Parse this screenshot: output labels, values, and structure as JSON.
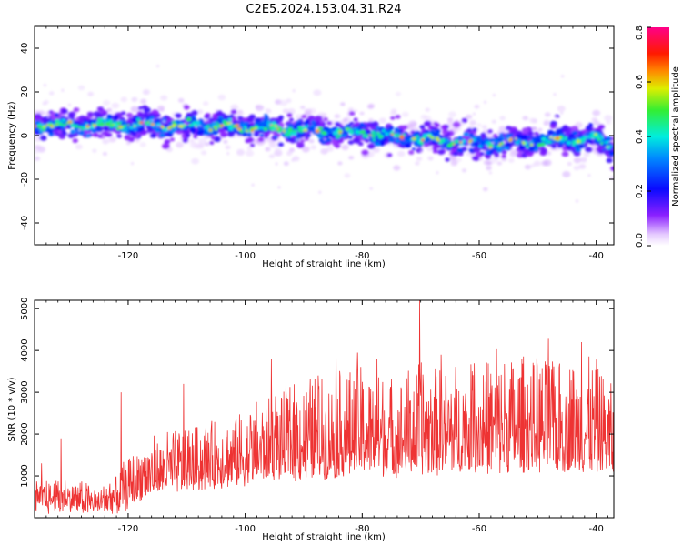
{
  "title": "C2E5.2024.153.04.31.R24",
  "colors": {
    "snr_line": "#ee3333",
    "frame": "#000000"
  },
  "chart_data": [
    {
      "type": "heatmap",
      "xlabel": "Height of straight line (km)",
      "ylabel": "Frequency (Hz)",
      "xlim": [
        -136,
        -37
      ],
      "ylim": [
        -50,
        50
      ],
      "xticks": [
        -120,
        -100,
        -80,
        -60,
        -40
      ],
      "yticks": [
        -40,
        -20,
        0,
        20,
        40
      ],
      "ridge": {
        "x": [
          -136,
          -120,
          -100,
          -80,
          -60,
          -40,
          -37
        ],
        "freq_hz": [
          5,
          5,
          4,
          1,
          -4,
          -1,
          -6
        ]
      },
      "colorbar": {
        "label": "Normalized spectral amplitude",
        "range": [
          0,
          0.8
        ],
        "ticks": [
          "0.0",
          "0.2",
          "0.4",
          "0.6",
          "0.8"
        ]
      }
    },
    {
      "type": "line",
      "xlabel": "Height of straight line (km)",
      "ylabel": "SNR (10 * v/v)",
      "xlim": [
        -136,
        -37
      ],
      "ylim": [
        0,
        5200
      ],
      "xticks": [
        -120,
        -100,
        -80,
        -60,
        -40
      ],
      "yticks": [
        1000,
        2000,
        3000,
        4000,
        5000
      ],
      "envelope": {
        "x": [
          -136,
          -130,
          -125,
          -121,
          -117,
          -110,
          -100,
          -95,
          -90,
          -85,
          -80,
          -75,
          -70,
          -65,
          -60,
          -55,
          -50,
          -45,
          -40,
          -37
        ],
        "baseline": [
          300,
          350,
          300,
          350,
          700,
          800,
          1000,
          1100,
          1100,
          1150,
          1200,
          1200,
          1200,
          1250,
          1250,
          1300,
          1300,
          1300,
          1300,
          1200
        ],
        "amplitude": [
          600,
          700,
          500,
          1000,
          1300,
          1500,
          1700,
          2000,
          2300,
          2400,
          2500,
          2300,
          2600,
          2500,
          2700,
          2700,
          2700,
          2600,
          2600,
          2000
        ]
      },
      "peaks": [
        {
          "x": -134.8,
          "y": 1300
        },
        {
          "x": -131.5,
          "y": 1900
        },
        {
          "x": -121.2,
          "y": 3000
        },
        {
          "x": -110.5,
          "y": 3200
        },
        {
          "x": -95.5,
          "y": 3800
        },
        {
          "x": -87.5,
          "y": 3400
        },
        {
          "x": -84.5,
          "y": 4200
        },
        {
          "x": -80.8,
          "y": 3950
        },
        {
          "x": -77.5,
          "y": 3800
        },
        {
          "x": -70.2,
          "y": 5200
        },
        {
          "x": -66.5,
          "y": 3900
        },
        {
          "x": -61.2,
          "y": 3500
        },
        {
          "x": -57.0,
          "y": 4050
        },
        {
          "x": -48.2,
          "y": 4300
        },
        {
          "x": -42.5,
          "y": 4200
        }
      ]
    }
  ]
}
